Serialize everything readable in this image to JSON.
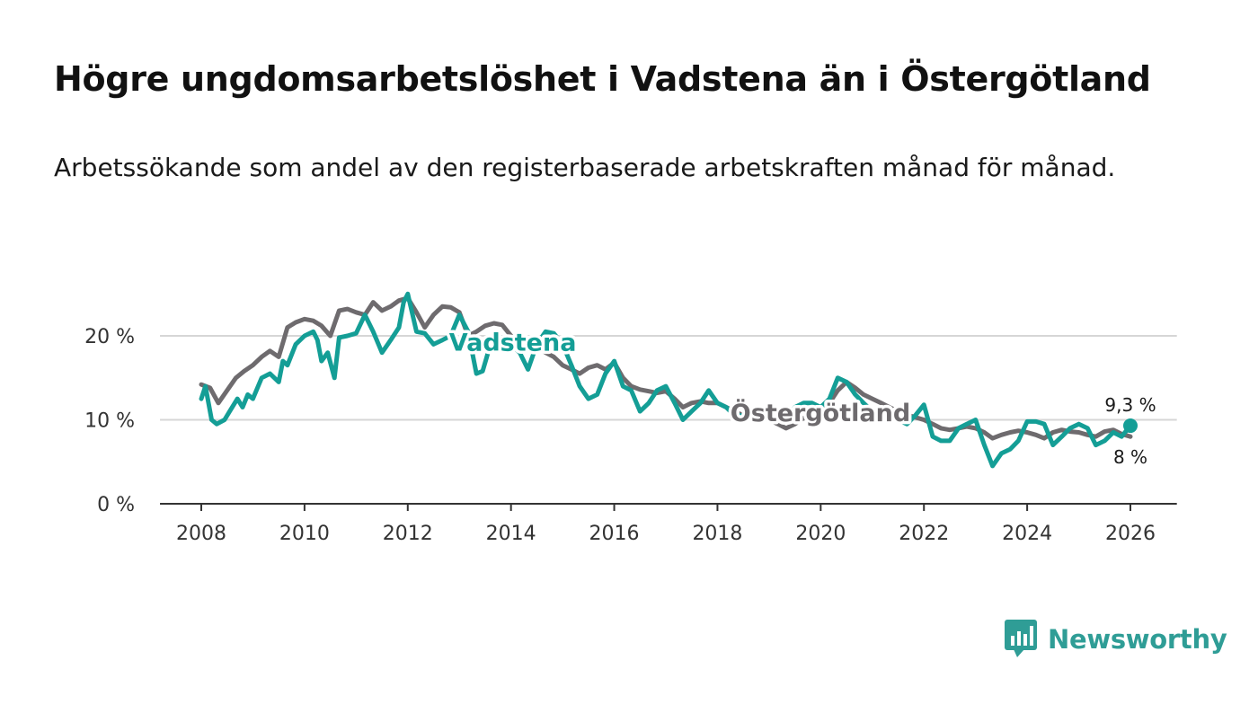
{
  "title": "Högre ungdomsarbetslöshet i Vadstena än i Östergötland",
  "subtitle": "Arbetssökande som andel av den registerbaserade arbetskraften månad för månad.",
  "brand": {
    "name": "Newsworthy",
    "color": "#2f9d96"
  },
  "colors": {
    "vadstena": "#149e96",
    "ostergotland": "#6e6b6e",
    "grid": "#d6d6d6",
    "axis": "#333333"
  },
  "chart_data": {
    "type": "line",
    "title": "Högre ungdomsarbetslöshet i Vadstena än i Östergötland",
    "subtitle": "Arbetssökande som andel av den registerbaserade arbetskraften månad för månad.",
    "xlabel": "",
    "ylabel": "",
    "xlim": [
      2007.2,
      2026.9
    ],
    "ylim": [
      0,
      25
    ],
    "grid": true,
    "y_ticks": [
      {
        "value": 0,
        "label": "0 %"
      },
      {
        "value": 10,
        "label": "10 %"
      },
      {
        "value": 20,
        "label": "20 %"
      }
    ],
    "x_ticks": [
      {
        "value": 2008,
        "label": "2008"
      },
      {
        "value": 2010,
        "label": "2010"
      },
      {
        "value": 2012,
        "label": "2012"
      },
      {
        "value": 2014,
        "label": "2014"
      },
      {
        "value": 2016,
        "label": "2016"
      },
      {
        "value": 2018,
        "label": "2018"
      },
      {
        "value": 2020,
        "label": "2020"
      },
      {
        "value": 2022,
        "label": "2022"
      },
      {
        "value": 2024,
        "label": "2024"
      },
      {
        "value": 2026,
        "label": "2026"
      }
    ],
    "series": [
      {
        "name": "Östergötland",
        "label": "Östergötland",
        "end_label": "8 %",
        "points": [
          [
            2008.0,
            14.2
          ],
          [
            2008.17,
            13.8
          ],
          [
            2008.33,
            12.0
          ],
          [
            2008.5,
            13.5
          ],
          [
            2008.67,
            15.0
          ],
          [
            2008.83,
            15.8
          ],
          [
            2009.0,
            16.5
          ],
          [
            2009.17,
            17.5
          ],
          [
            2009.33,
            18.2
          ],
          [
            2009.5,
            17.5
          ],
          [
            2009.67,
            21.0
          ],
          [
            2009.83,
            21.6
          ],
          [
            2010.0,
            22.0
          ],
          [
            2010.17,
            21.8
          ],
          [
            2010.33,
            21.2
          ],
          [
            2010.5,
            20.0
          ],
          [
            2010.67,
            23.0
          ],
          [
            2010.83,
            23.2
          ],
          [
            2011.0,
            22.8
          ],
          [
            2011.17,
            22.5
          ],
          [
            2011.33,
            24.0
          ],
          [
            2011.5,
            23.0
          ],
          [
            2011.67,
            23.5
          ],
          [
            2011.83,
            24.2
          ],
          [
            2012.0,
            24.5
          ],
          [
            2012.17,
            22.8
          ],
          [
            2012.33,
            21.0
          ],
          [
            2012.5,
            22.5
          ],
          [
            2012.67,
            23.5
          ],
          [
            2012.83,
            23.4
          ],
          [
            2013.0,
            22.8
          ],
          [
            2013.17,
            20.0
          ],
          [
            2013.33,
            20.5
          ],
          [
            2013.5,
            21.2
          ],
          [
            2013.67,
            21.5
          ],
          [
            2013.83,
            21.3
          ],
          [
            2014.0,
            20.0
          ],
          [
            2014.17,
            19.0
          ],
          [
            2014.33,
            18.5
          ],
          [
            2014.5,
            19.0
          ],
          [
            2014.67,
            18.0
          ],
          [
            2014.83,
            17.5
          ],
          [
            2015.0,
            16.5
          ],
          [
            2015.17,
            16.0
          ],
          [
            2015.33,
            15.5
          ],
          [
            2015.5,
            16.2
          ],
          [
            2015.67,
            16.5
          ],
          [
            2015.83,
            16.0
          ],
          [
            2016.0,
            16.8
          ],
          [
            2016.17,
            15.0
          ],
          [
            2016.33,
            14.0
          ],
          [
            2016.5,
            13.6
          ],
          [
            2016.67,
            13.4
          ],
          [
            2016.83,
            13.2
          ],
          [
            2017.0,
            13.4
          ],
          [
            2017.17,
            12.5
          ],
          [
            2017.33,
            11.5
          ],
          [
            2017.5,
            12.0
          ],
          [
            2017.67,
            12.2
          ],
          [
            2017.83,
            12.0
          ],
          [
            2018.0,
            12.0
          ],
          [
            2018.17,
            11.5
          ],
          [
            2018.33,
            11.0
          ],
          [
            2018.5,
            10.5
          ],
          [
            2018.67,
            10.3
          ],
          [
            2018.83,
            10.2
          ],
          [
            2019.0,
            10.0
          ],
          [
            2019.17,
            9.5
          ],
          [
            2019.33,
            9.0
          ],
          [
            2019.5,
            9.5
          ],
          [
            2019.67,
            10.2
          ],
          [
            2019.83,
            10.5
          ],
          [
            2020.0,
            11.0
          ],
          [
            2020.17,
            12.0
          ],
          [
            2020.33,
            13.5
          ],
          [
            2020.5,
            14.5
          ],
          [
            2020.67,
            13.8
          ],
          [
            2020.83,
            13.0
          ],
          [
            2021.0,
            12.5
          ],
          [
            2021.17,
            12.0
          ],
          [
            2021.33,
            11.5
          ],
          [
            2021.5,
            11.0
          ],
          [
            2021.67,
            10.6
          ],
          [
            2021.83,
            10.3
          ],
          [
            2022.0,
            10.0
          ],
          [
            2022.17,
            9.5
          ],
          [
            2022.33,
            9.0
          ],
          [
            2022.5,
            8.8
          ],
          [
            2022.67,
            9.0
          ],
          [
            2022.83,
            9.2
          ],
          [
            2023.0,
            9.0
          ],
          [
            2023.17,
            8.5
          ],
          [
            2023.33,
            7.8
          ],
          [
            2023.5,
            8.2
          ],
          [
            2023.67,
            8.5
          ],
          [
            2023.83,
            8.7
          ],
          [
            2024.0,
            8.5
          ],
          [
            2024.17,
            8.2
          ],
          [
            2024.33,
            7.8
          ],
          [
            2024.5,
            8.5
          ],
          [
            2024.67,
            8.8
          ],
          [
            2024.83,
            8.6
          ],
          [
            2025.0,
            8.5
          ],
          [
            2025.17,
            8.2
          ],
          [
            2025.33,
            8.0
          ],
          [
            2025.5,
            8.6
          ],
          [
            2025.67,
            8.8
          ],
          [
            2025.83,
            8.3
          ],
          [
            2026.0,
            8.0
          ]
        ]
      },
      {
        "name": "Vadstena",
        "label": "Vadstena",
        "end_label": "9,3 %",
        "points": [
          [
            2008.0,
            12.5
          ],
          [
            2008.08,
            14.0
          ],
          [
            2008.2,
            10.0
          ],
          [
            2008.3,
            9.5
          ],
          [
            2008.45,
            10.0
          ],
          [
            2008.55,
            11.0
          ],
          [
            2008.7,
            12.5
          ],
          [
            2008.8,
            11.5
          ],
          [
            2008.9,
            13.0
          ],
          [
            2009.0,
            12.5
          ],
          [
            2009.17,
            15.0
          ],
          [
            2009.33,
            15.5
          ],
          [
            2009.5,
            14.5
          ],
          [
            2009.58,
            17.0
          ],
          [
            2009.67,
            16.5
          ],
          [
            2009.83,
            19.0
          ],
          [
            2010.0,
            20.0
          ],
          [
            2010.17,
            20.5
          ],
          [
            2010.25,
            19.5
          ],
          [
            2010.33,
            17.0
          ],
          [
            2010.45,
            18.0
          ],
          [
            2010.58,
            15.0
          ],
          [
            2010.67,
            19.8
          ],
          [
            2010.83,
            20.0
          ],
          [
            2011.0,
            20.3
          ],
          [
            2011.17,
            22.5
          ],
          [
            2011.33,
            20.5
          ],
          [
            2011.5,
            18.0
          ],
          [
            2011.67,
            19.5
          ],
          [
            2011.83,
            21.0
          ],
          [
            2011.92,
            24.0
          ],
          [
            2012.0,
            25.0
          ],
          [
            2012.17,
            20.5
          ],
          [
            2012.33,
            20.3
          ],
          [
            2012.5,
            19.0
          ],
          [
            2012.67,
            19.5
          ],
          [
            2012.83,
            20.0
          ],
          [
            2013.0,
            22.5
          ],
          [
            2013.17,
            20.5
          ],
          [
            2013.33,
            15.5
          ],
          [
            2013.45,
            15.8
          ],
          [
            2013.58,
            18.5
          ],
          [
            2013.75,
            20.0
          ],
          [
            2014.0,
            19.0
          ],
          [
            2014.17,
            18.0
          ],
          [
            2014.33,
            16.0
          ],
          [
            2014.5,
            19.0
          ],
          [
            2014.67,
            20.5
          ],
          [
            2014.83,
            20.3
          ],
          [
            2015.0,
            19.0
          ],
          [
            2015.17,
            16.5
          ],
          [
            2015.33,
            14.0
          ],
          [
            2015.5,
            12.5
          ],
          [
            2015.67,
            13.0
          ],
          [
            2015.83,
            15.5
          ],
          [
            2016.0,
            17.0
          ],
          [
            2016.17,
            14.0
          ],
          [
            2016.33,
            13.5
          ],
          [
            2016.5,
            11.0
          ],
          [
            2016.67,
            12.0
          ],
          [
            2016.83,
            13.5
          ],
          [
            2017.0,
            14.0
          ],
          [
            2017.17,
            12.0
          ],
          [
            2017.33,
            10.0
          ],
          [
            2017.5,
            11.0
          ],
          [
            2017.67,
            12.0
          ],
          [
            2017.83,
            13.5
          ],
          [
            2018.0,
            12.0
          ],
          [
            2018.17,
            11.5
          ],
          [
            2018.33,
            10.5
          ],
          [
            2018.5,
            10.5
          ],
          [
            2018.67,
            10.0
          ],
          [
            2018.83,
            10.3
          ],
          [
            2019.0,
            10.5
          ],
          [
            2019.17,
            11.0
          ],
          [
            2019.33,
            10.0
          ],
          [
            2019.5,
            11.5
          ],
          [
            2019.67,
            12.0
          ],
          [
            2019.83,
            12.0
          ],
          [
            2020.0,
            11.5
          ],
          [
            2020.17,
            12.5
          ],
          [
            2020.33,
            15.0
          ],
          [
            2020.5,
            14.5
          ],
          [
            2020.67,
            13.0
          ],
          [
            2020.83,
            12.0
          ],
          [
            2021.0,
            11.0
          ],
          [
            2021.17,
            10.5
          ],
          [
            2021.33,
            10.3
          ],
          [
            2021.5,
            10.0
          ],
          [
            2021.67,
            9.5
          ],
          [
            2021.83,
            10.5
          ],
          [
            2022.0,
            11.8
          ],
          [
            2022.17,
            8.0
          ],
          [
            2022.33,
            7.5
          ],
          [
            2022.5,
            7.5
          ],
          [
            2022.67,
            9.0
          ],
          [
            2022.83,
            9.5
          ],
          [
            2023.0,
            10.0
          ],
          [
            2023.17,
            7.0
          ],
          [
            2023.33,
            4.5
          ],
          [
            2023.5,
            6.0
          ],
          [
            2023.67,
            6.5
          ],
          [
            2023.83,
            7.5
          ],
          [
            2024.0,
            9.8
          ],
          [
            2024.17,
            9.8
          ],
          [
            2024.33,
            9.5
          ],
          [
            2024.5,
            7.0
          ],
          [
            2024.67,
            8.0
          ],
          [
            2024.83,
            9.0
          ],
          [
            2025.0,
            9.5
          ],
          [
            2025.17,
            9.0
          ],
          [
            2025.33,
            7.0
          ],
          [
            2025.5,
            7.5
          ],
          [
            2025.67,
            8.5
          ],
          [
            2025.83,
            8.0
          ],
          [
            2026.0,
            9.3
          ]
        ]
      }
    ]
  }
}
